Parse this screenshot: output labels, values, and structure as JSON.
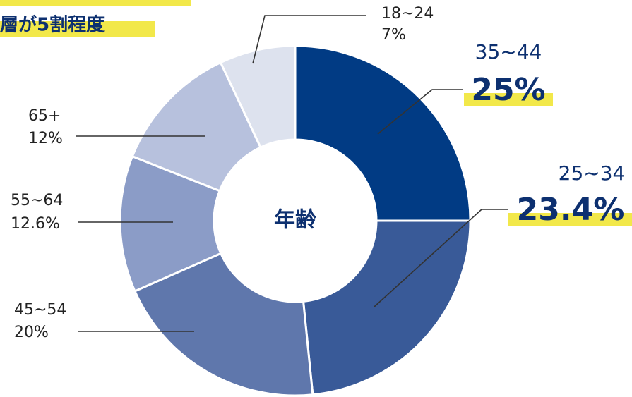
{
  "chart_data": {
    "type": "donut",
    "title": "層が5割程度",
    "center_label": "年齢",
    "categories": [
      "35~44",
      "25~34",
      "45~54",
      "55~64",
      "65+",
      "18~24"
    ],
    "values": [
      25,
      23.4,
      20,
      12.6,
      12,
      7
    ],
    "value_labels": [
      "25%",
      "23.4%",
      "20%",
      "12.6%",
      "12%",
      "7%"
    ],
    "colors": [
      "#013b84",
      "#395a98",
      "#5f77ac",
      "#8b9cc7",
      "#b7c1dd",
      "#dde2ee"
    ]
  }
}
